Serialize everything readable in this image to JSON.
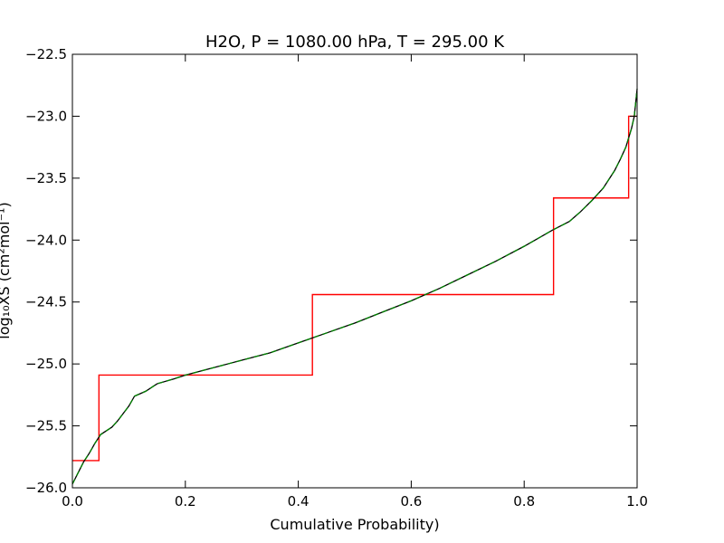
{
  "chart_data": {
    "type": "line",
    "title": "H2O, P = 1080.00 hPa, T = 295.00 K",
    "xlabel": "Cumulative Probability)",
    "ylabel": "log₁₀XS (cm²mol⁻¹)",
    "xlim": [
      0.0,
      1.0
    ],
    "ylim": [
      -26.0,
      -22.5
    ],
    "x_ticks": [
      "0.0",
      "0.2",
      "0.4",
      "0.6",
      "0.8",
      "1.0"
    ],
    "y_ticks": [
      "−22.5",
      "−23.0",
      "−23.5",
      "−24.0",
      "−24.5",
      "−25.0",
      "−25.5",
      "−26.0"
    ],
    "grid": false,
    "legend": "none",
    "series": [
      {
        "color": "#000000",
        "style": "solid",
        "x": [
          0.0,
          0.01,
          0.02,
          0.03,
          0.04,
          0.05,
          0.06,
          0.07,
          0.08,
          0.09,
          0.1,
          0.11,
          0.13,
          0.15,
          0.18,
          0.2,
          0.25,
          0.3,
          0.35,
          0.4,
          0.45,
          0.5,
          0.55,
          0.6,
          0.65,
          0.7,
          0.75,
          0.8,
          0.85,
          0.88,
          0.9,
          0.92,
          0.94,
          0.96,
          0.97,
          0.98,
          0.99,
          0.995,
          1.0
        ],
        "y": [
          -25.97,
          -25.88,
          -25.79,
          -25.72,
          -25.64,
          -25.57,
          -25.54,
          -25.51,
          -25.46,
          -25.4,
          -25.34,
          -25.26,
          -25.22,
          -25.16,
          -25.12,
          -25.09,
          -25.03,
          -24.97,
          -24.91,
          -24.83,
          -24.75,
          -24.67,
          -24.58,
          -24.49,
          -24.39,
          -24.28,
          -24.17,
          -24.05,
          -23.92,
          -23.85,
          -23.77,
          -23.68,
          -23.58,
          -23.44,
          -23.35,
          -23.25,
          -23.1,
          -23.0,
          -22.78
        ]
      },
      {
        "color": "#008000",
        "style": "dashed",
        "x": [
          0.0,
          0.01,
          0.02,
          0.03,
          0.04,
          0.05,
          0.06,
          0.07,
          0.08,
          0.09,
          0.1,
          0.11,
          0.13,
          0.15,
          0.18,
          0.2,
          0.25,
          0.3,
          0.35,
          0.4,
          0.45,
          0.5,
          0.55,
          0.6,
          0.65,
          0.7,
          0.75,
          0.8,
          0.85,
          0.88,
          0.9,
          0.92,
          0.94,
          0.96,
          0.97,
          0.98,
          0.99,
          0.995,
          1.0
        ],
        "y": [
          -25.97,
          -25.88,
          -25.79,
          -25.72,
          -25.64,
          -25.57,
          -25.54,
          -25.51,
          -25.46,
          -25.4,
          -25.34,
          -25.26,
          -25.22,
          -25.16,
          -25.12,
          -25.09,
          -25.03,
          -24.97,
          -24.91,
          -24.83,
          -24.75,
          -24.67,
          -24.58,
          -24.49,
          -24.39,
          -24.28,
          -24.17,
          -24.05,
          -23.92,
          -23.85,
          -23.77,
          -23.68,
          -23.58,
          -23.44,
          -23.35,
          -23.25,
          -23.1,
          -23.0,
          -22.78
        ]
      },
      {
        "color": "#ff0000",
        "style": "step",
        "x": [
          0.0,
          0.047,
          0.047,
          0.425,
          0.425,
          0.852,
          0.852,
          0.985,
          0.985,
          1.0
        ],
        "y": [
          -25.78,
          -25.78,
          -25.09,
          -25.09,
          -24.44,
          -24.44,
          -23.66,
          -23.66,
          -23.0,
          -23.0
        ]
      }
    ]
  }
}
